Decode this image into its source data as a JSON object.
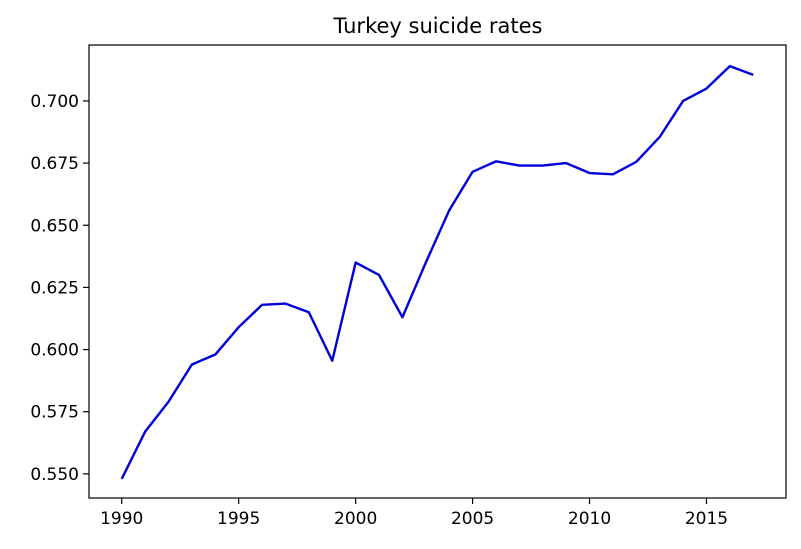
{
  "chart_data": {
    "type": "line",
    "title": "Turkey suicide rates",
    "xlabel": "",
    "ylabel": "",
    "xlim": [
      1988.6,
      2018.4
    ],
    "ylim": [
      0.5403,
      0.7225
    ],
    "x_ticks": [
      1990,
      1995,
      2000,
      2005,
      2010,
      2015
    ],
    "y_ticks": [
      0.55,
      0.575,
      0.6,
      0.625,
      0.65,
      0.675,
      0.7
    ],
    "y_tick_labels": [
      "0.550",
      "0.575",
      "0.600",
      "0.625",
      "0.650",
      "0.675",
      "0.700"
    ],
    "grid": false,
    "legend": "none",
    "series": [
      {
        "color": "#0000dd",
        "x": [
          1990,
          1991,
          1992,
          1993,
          1994,
          1995,
          1996,
          1997,
          1998,
          1999,
          2000,
          2001,
          2002,
          2003,
          2004,
          2005,
          2006,
          2007,
          2008,
          2009,
          2010,
          2011,
          2012,
          2013,
          2014,
          2015,
          2016,
          2017
        ],
        "y": [
          0.548,
          0.567,
          0.579,
          0.594,
          0.598,
          0.609,
          0.618,
          0.6185,
          0.615,
          0.5955,
          0.635,
          0.63,
          0.613,
          0.635,
          0.656,
          0.6715,
          0.6757,
          0.674,
          0.674,
          0.675,
          0.671,
          0.6705,
          0.6755,
          0.6855,
          0.7,
          0.705,
          0.714,
          0.7105
        ]
      }
    ]
  }
}
